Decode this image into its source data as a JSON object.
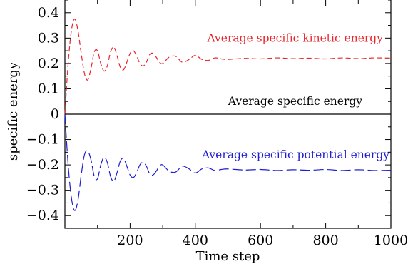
{
  "chart_data": {
    "type": "line",
    "title": "",
    "xlabel": "Time step",
    "ylabel": "specific energy",
    "xlim": [
      0,
      1000
    ],
    "ylim": [
      -0.45,
      0.45
    ],
    "x_ticks": [
      200,
      400,
      600,
      800,
      1000
    ],
    "y_ticks": [
      -0.4,
      -0.3,
      -0.2,
      -0.1,
      0,
      0.1,
      0.2,
      0.3,
      0.4
    ],
    "x_tick_labels": [
      "200",
      "400",
      "600",
      "800",
      "1000"
    ],
    "y_tick_labels": [
      "−0.4",
      "−0.3",
      "−0.2",
      "−0.1",
      "0",
      "0.1",
      "0.2",
      "0.3",
      "0.4"
    ],
    "grid": false,
    "legend": "none",
    "series": [
      {
        "name": "Average specific kinetic energy",
        "color": "#e8262c",
        "dash": "short-dash",
        "x": [
          0,
          10,
          20,
          30,
          40,
          50,
          60,
          70,
          80,
          90,
          100,
          110,
          120,
          130,
          140,
          150,
          160,
          170,
          180,
          190,
          200,
          210,
          220,
          230,
          240,
          250,
          260,
          270,
          280,
          290,
          300,
          320,
          340,
          360,
          380,
          400,
          420,
          440,
          460,
          480,
          500,
          550,
          600,
          650,
          700,
          750,
          800,
          850,
          900,
          950,
          1000
        ],
        "y": [
          0,
          0.2,
          0.33,
          0.375,
          0.33,
          0.24,
          0.16,
          0.135,
          0.18,
          0.245,
          0.25,
          0.2,
          0.17,
          0.19,
          0.245,
          0.265,
          0.23,
          0.185,
          0.175,
          0.205,
          0.24,
          0.25,
          0.23,
          0.2,
          0.19,
          0.205,
          0.235,
          0.24,
          0.225,
          0.205,
          0.2,
          0.225,
          0.228,
          0.205,
          0.215,
          0.232,
          0.216,
          0.212,
          0.222,
          0.218,
          0.216,
          0.22,
          0.218,
          0.222,
          0.219,
          0.221,
          0.218,
          0.222,
          0.219,
          0.222,
          0.221
        ]
      },
      {
        "name": "Average specific energy",
        "color": "#000000",
        "dash": "solid",
        "x": [
          0,
          1000
        ],
        "y": [
          0,
          0
        ]
      },
      {
        "name": "Average specific potential energy",
        "color": "#1d1dd4",
        "dash": "long-dash",
        "x": [
          0,
          10,
          20,
          30,
          40,
          50,
          60,
          70,
          80,
          90,
          100,
          110,
          120,
          130,
          140,
          150,
          160,
          170,
          180,
          190,
          200,
          210,
          220,
          230,
          240,
          250,
          260,
          270,
          280,
          290,
          300,
          320,
          340,
          360,
          380,
          400,
          420,
          440,
          460,
          480,
          500,
          550,
          600,
          650,
          700,
          750,
          800,
          850,
          900,
          950,
          1000
        ],
        "y": [
          0,
          -0.2,
          -0.33,
          -0.38,
          -0.34,
          -0.24,
          -0.16,
          -0.145,
          -0.18,
          -0.245,
          -0.255,
          -0.2,
          -0.17,
          -0.19,
          -0.245,
          -0.265,
          -0.23,
          -0.185,
          -0.175,
          -0.205,
          -0.24,
          -0.25,
          -0.23,
          -0.2,
          -0.19,
          -0.205,
          -0.235,
          -0.24,
          -0.225,
          -0.205,
          -0.2,
          -0.225,
          -0.228,
          -0.205,
          -0.215,
          -0.232,
          -0.216,
          -0.212,
          -0.222,
          -0.218,
          -0.216,
          -0.22,
          -0.218,
          -0.222,
          -0.219,
          -0.221,
          -0.218,
          -0.222,
          -0.219,
          -0.222,
          -0.221
        ]
      }
    ]
  }
}
